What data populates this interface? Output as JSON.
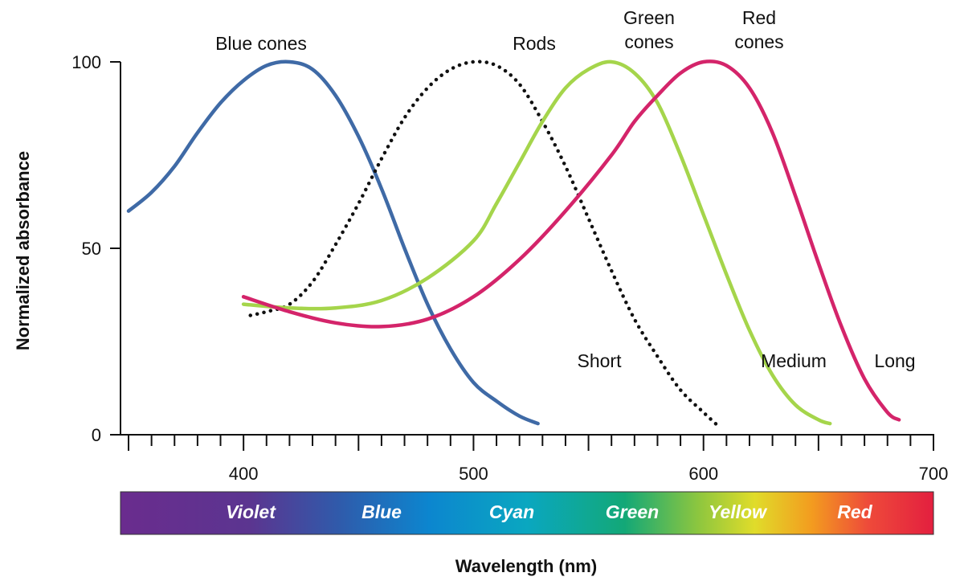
{
  "chart_data": {
    "type": "line",
    "title": "",
    "xlabel": "Wavelength (nm)",
    "ylabel": "Normalized absorbance",
    "xlim": [
      350,
      700
    ],
    "ylim": [
      0,
      100
    ],
    "x_ticks": [
      400,
      500,
      600,
      700
    ],
    "y_ticks": [
      0,
      50,
      100
    ],
    "grid": false,
    "series": [
      {
        "name": "Blue cones",
        "subname": "Short",
        "color": "#3f6aa6",
        "style": "solid",
        "points": [
          [
            350,
            60
          ],
          [
            360,
            65
          ],
          [
            370,
            72
          ],
          [
            380,
            81
          ],
          [
            390,
            89
          ],
          [
            400,
            95
          ],
          [
            410,
            99
          ],
          [
            420,
            100
          ],
          [
            430,
            98
          ],
          [
            440,
            91
          ],
          [
            450,
            80
          ],
          [
            460,
            66
          ],
          [
            470,
            50
          ],
          [
            480,
            35
          ],
          [
            490,
            23
          ],
          [
            500,
            14
          ],
          [
            510,
            9
          ],
          [
            520,
            5
          ],
          [
            528,
            3
          ]
        ]
      },
      {
        "name": "Rods",
        "subname": "",
        "color": "#111111",
        "style": "dotted",
        "points": [
          [
            403,
            32
          ],
          [
            410,
            33
          ],
          [
            420,
            35
          ],
          [
            430,
            41
          ],
          [
            440,
            51
          ],
          [
            450,
            62
          ],
          [
            460,
            74
          ],
          [
            470,
            85
          ],
          [
            480,
            93
          ],
          [
            490,
            98
          ],
          [
            500,
            100
          ],
          [
            510,
            99
          ],
          [
            520,
            94
          ],
          [
            530,
            84
          ],
          [
            540,
            72
          ],
          [
            550,
            58
          ],
          [
            560,
            44
          ],
          [
            570,
            31
          ],
          [
            580,
            21
          ],
          [
            590,
            12
          ],
          [
            600,
            6
          ],
          [
            607,
            2
          ]
        ]
      },
      {
        "name": "Green\ncones",
        "subname": "Medium",
        "color": "#a5d54b",
        "style": "solid",
        "points": [
          [
            400,
            35
          ],
          [
            420,
            34
          ],
          [
            440,
            34
          ],
          [
            460,
            36
          ],
          [
            480,
            42
          ],
          [
            500,
            52
          ],
          [
            510,
            62
          ],
          [
            520,
            73
          ],
          [
            530,
            84
          ],
          [
            540,
            93
          ],
          [
            550,
            98
          ],
          [
            560,
            100
          ],
          [
            570,
            97
          ],
          [
            580,
            89
          ],
          [
            590,
            75
          ],
          [
            600,
            59
          ],
          [
            610,
            43
          ],
          [
            620,
            28
          ],
          [
            630,
            16
          ],
          [
            640,
            8
          ],
          [
            650,
            4
          ],
          [
            655,
            3
          ]
        ]
      },
      {
        "name": "Red\ncones",
        "subname": "Long",
        "color": "#d4246a",
        "style": "solid",
        "points": [
          [
            400,
            37
          ],
          [
            420,
            33
          ],
          [
            440,
            30
          ],
          [
            460,
            29
          ],
          [
            480,
            31
          ],
          [
            500,
            37
          ],
          [
            520,
            47
          ],
          [
            540,
            60
          ],
          [
            560,
            75
          ],
          [
            570,
            84
          ],
          [
            580,
            91
          ],
          [
            590,
            97
          ],
          [
            600,
            100
          ],
          [
            610,
            99
          ],
          [
            620,
            93
          ],
          [
            630,
            81
          ],
          [
            640,
            64
          ],
          [
            650,
            46
          ],
          [
            660,
            29
          ],
          [
            670,
            15
          ],
          [
            680,
            6
          ],
          [
            685,
            4
          ]
        ]
      }
    ],
    "spectrum_bands": [
      "Violet",
      "Blue",
      "Cyan",
      "Green",
      "Yellow",
      "Red"
    ]
  }
}
